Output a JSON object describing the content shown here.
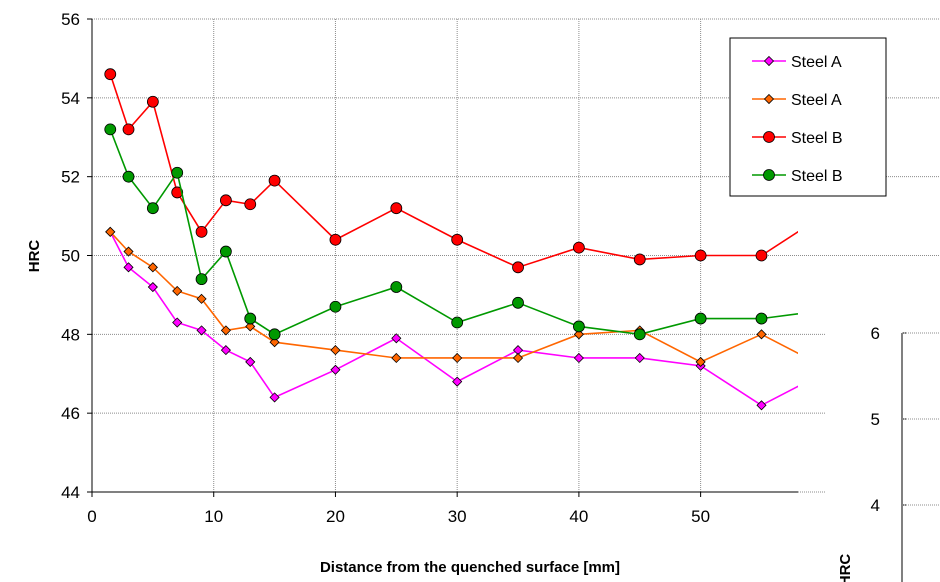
{
  "chart_data": [
    {
      "type": "line",
      "xlabel": "Distance from the quenched surface [mm]",
      "ylabel": "HRC",
      "xlim": [
        0,
        58
      ],
      "ylim": [
        44,
        56
      ],
      "xticks": [
        0,
        10,
        20,
        30,
        40,
        50
      ],
      "yticks": [
        44,
        46,
        48,
        50,
        52,
        54,
        56
      ],
      "grid": true,
      "legend_position": "top-right",
      "series": [
        {
          "name": "Steel A",
          "color": "#ff00ff",
          "marker": "diamond",
          "x": [
            1.5,
            3,
            5,
            7,
            9,
            11,
            13,
            15,
            20,
            25,
            30,
            35,
            40,
            45,
            50,
            55,
            60
          ],
          "y": [
            50.6,
            49.7,
            49.2,
            48.3,
            48.1,
            47.6,
            47.3,
            46.4,
            47.1,
            47.9,
            46.8,
            47.6,
            47.4,
            47.4,
            47.2,
            46.2,
            47.0
          ]
        },
        {
          "name": "Steel A",
          "color": "#ff6600",
          "marker": "diamond",
          "x": [
            1.5,
            3,
            5,
            7,
            9,
            11,
            13,
            15,
            20,
            25,
            30,
            35,
            40,
            45,
            50,
            55,
            60
          ],
          "y": [
            50.6,
            50.1,
            49.7,
            49.1,
            48.9,
            48.1,
            48.2,
            47.8,
            47.6,
            47.4,
            47.4,
            47.4,
            48.0,
            48.1,
            47.3,
            48.0,
            47.2
          ]
        },
        {
          "name": "Steel B",
          "color": "#ff0000",
          "marker": "circle",
          "x": [
            1.5,
            3,
            5,
            7,
            9,
            11,
            13,
            15,
            20,
            25,
            30,
            35,
            40,
            45,
            50,
            55,
            60,
            65
          ],
          "y": [
            54.6,
            53.2,
            53.9,
            51.6,
            50.6,
            51.4,
            51.3,
            51.9,
            50.4,
            51.2,
            50.4,
            49.7,
            50.2,
            49.9,
            50.0,
            50.0,
            51.0,
            50.1
          ]
        },
        {
          "name": "Steel B",
          "color": "#009900",
          "marker": "circle",
          "x": [
            1.5,
            3,
            5,
            7,
            9,
            11,
            13,
            15,
            20,
            25,
            30,
            35,
            40,
            45,
            50,
            55,
            60
          ],
          "y": [
            53.2,
            52.0,
            51.2,
            52.1,
            49.4,
            50.1,
            48.4,
            48.0,
            48.7,
            49.2,
            48.3,
            48.8,
            48.2,
            48.0,
            48.4,
            48.4,
            48.6
          ]
        }
      ]
    },
    {
      "type": "line",
      "ylabel": "HRC",
      "ylim": [
        3,
        6
      ],
      "yticks": [
        6,
        5,
        4
      ],
      "series": []
    }
  ]
}
